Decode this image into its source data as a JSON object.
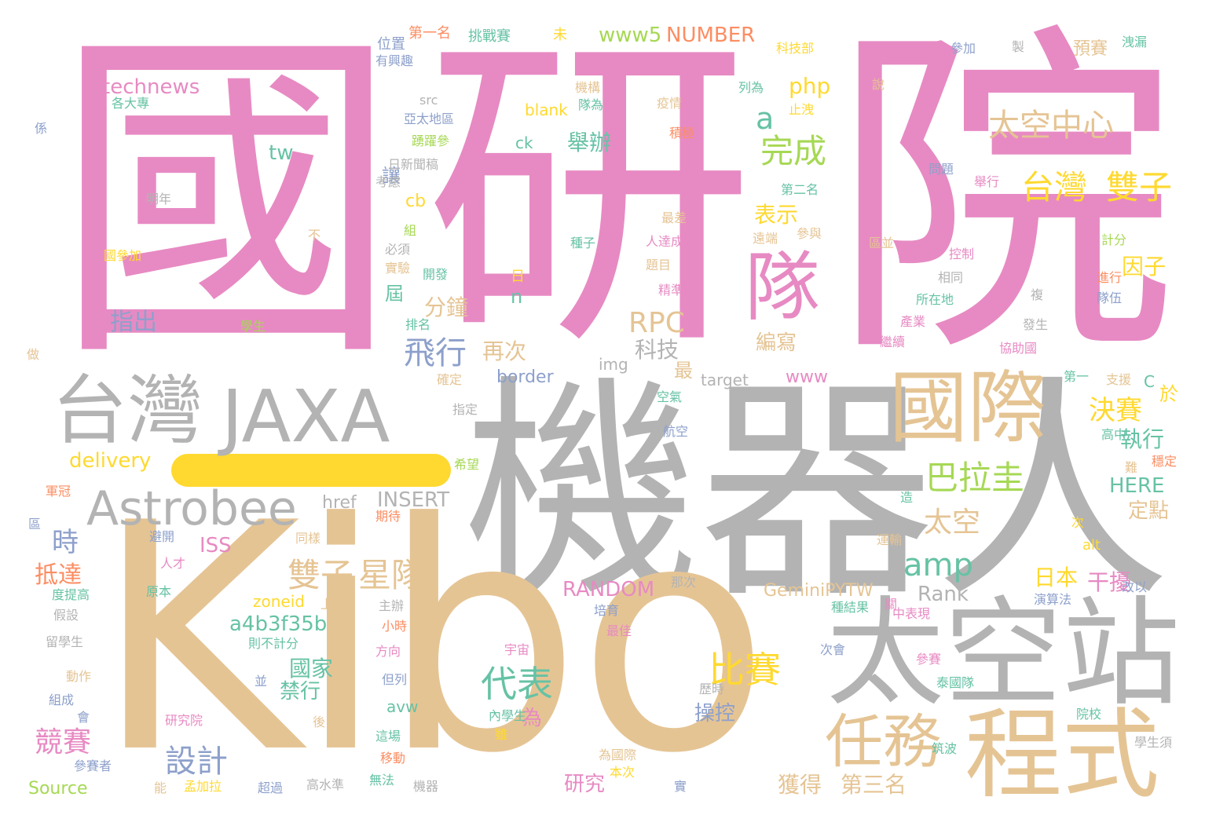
{
  "colors": {
    "pink": "#e78ac3",
    "gray": "#b3b3b3",
    "tan": "#e5c494",
    "yellow": "#ffd92f",
    "green": "#a6d854",
    "teal": "#66c2a5",
    "orange": "#fc8d62",
    "blue": "#8da0cb",
    "background": "#ffffff"
  },
  "words": [
    {
      "text": "國",
      "color": "pink"
    },
    {
      "text": "研",
      "color": "pink"
    },
    {
      "text": "院",
      "color": "pink"
    },
    {
      "text": "機器人",
      "color": "gray"
    },
    {
      "text": "Kibo",
      "color": "tan"
    },
    {
      "text": "台灣",
      "color": "gray"
    },
    {
      "text": "JAXA",
      "color": "gray"
    },
    {
      "text": "國際",
      "color": "tan"
    },
    {
      "text": "太空站",
      "color": "gray"
    },
    {
      "text": "程式",
      "color": "tan"
    },
    {
      "text": "任務",
      "color": "tan"
    },
    {
      "text": "Astrobee",
      "color": "gray"
    },
    {
      "text": "隊",
      "color": "pink"
    },
    {
      "text": "台灣",
      "color": "yellow"
    },
    {
      "text": "雙子",
      "color": "yellow"
    },
    {
      "text": "太空中心",
      "color": "tan"
    },
    {
      "text": "完成",
      "color": "green"
    },
    {
      "text": "巴拉圭",
      "color": "green"
    },
    {
      "text": "決賽",
      "color": "yellow"
    },
    {
      "text": "雙子",
      "color": "tan"
    },
    {
      "text": "星隊",
      "color": "tan"
    },
    {
      "text": "比賽",
      "color": "yellow"
    },
    {
      "text": "代表",
      "color": "teal"
    },
    {
      "text": "太空",
      "color": "tan"
    },
    {
      "text": "amp",
      "color": "teal"
    },
    {
      "text": "RPC",
      "color": "tan"
    },
    {
      "text": "飛行",
      "color": "blue"
    },
    {
      "text": "設計",
      "color": "blue"
    },
    {
      "text": "競賽",
      "color": "pink"
    },
    {
      "text": "technews",
      "color": "pink"
    },
    {
      "text": "NUMBER",
      "color": "orange"
    },
    {
      "text": "www5",
      "color": "green"
    },
    {
      "text": "php",
      "color": "yellow"
    },
    {
      "text": "a",
      "color": "teal"
    },
    {
      "text": "舉辦",
      "color": "teal"
    },
    {
      "text": "表示",
      "color": "yellow"
    },
    {
      "text": "因子",
      "color": "yellow"
    },
    {
      "text": "時",
      "color": "blue"
    },
    {
      "text": "抵達",
      "color": "orange"
    },
    {
      "text": "指出",
      "color": "blue"
    },
    {
      "text": "再次",
      "color": "tan"
    },
    {
      "text": "科技",
      "color": "gray"
    },
    {
      "text": "分鐘",
      "color": "tan"
    },
    {
      "text": "日本",
      "color": "yellow"
    },
    {
      "text": "干擾",
      "color": "pink"
    },
    {
      "text": "執行",
      "color": "teal"
    },
    {
      "text": "獲得",
      "color": "tan"
    },
    {
      "text": "第三名",
      "color": "tan"
    },
    {
      "text": "研究",
      "color": "pink"
    },
    {
      "text": "國家",
      "color": "teal"
    },
    {
      "text": "禁行",
      "color": "teal"
    },
    {
      "text": "操控",
      "color": "blue"
    },
    {
      "text": "編寫",
      "color": "tan"
    },
    {
      "text": "delivery",
      "color": "yellow"
    },
    {
      "text": "ISS",
      "color": "pink"
    },
    {
      "text": "INSERT",
      "color": "gray"
    },
    {
      "text": "href",
      "color": "gray"
    },
    {
      "text": "RANDOM",
      "color": "pink"
    },
    {
      "text": "Rank",
      "color": "gray"
    },
    {
      "text": "a4b3f35b",
      "color": "teal"
    },
    {
      "text": "zoneid",
      "color": "yellow"
    },
    {
      "text": "GeminiPYTW",
      "color": "tan"
    },
    {
      "text": "HERE",
      "color": "teal"
    },
    {
      "text": "定點",
      "color": "tan"
    },
    {
      "text": "Source",
      "color": "green"
    },
    {
      "text": "border",
      "color": "blue"
    },
    {
      "text": "www",
      "color": "pink"
    },
    {
      "text": "img",
      "color": "gray"
    },
    {
      "text": "target",
      "color": "gray"
    },
    {
      "text": "blank",
      "color": "yellow"
    },
    {
      "text": "ck",
      "color": "teal"
    },
    {
      "text": "tw",
      "color": "teal"
    },
    {
      "text": "cb",
      "color": "yellow"
    },
    {
      "text": "src",
      "color": "gray"
    },
    {
      "text": "alt",
      "color": "yellow"
    },
    {
      "text": "avw",
      "color": "teal"
    },
    {
      "text": "n",
      "color": "teal"
    },
    {
      "text": "C",
      "color": "teal"
    },
    {
      "text": "讓",
      "color": "blue"
    },
    {
      "text": "屆",
      "color": "teal"
    },
    {
      "text": "最",
      "color": "tan"
    },
    {
      "text": "於",
      "color": "yellow"
    },
    {
      "text": "為",
      "color": "pink"
    },
    {
      "text": "日",
      "color": "yellow"
    },
    {
      "text": "預賽",
      "color": "tan"
    },
    {
      "text": "第一名",
      "color": "orange"
    },
    {
      "text": "挑戰賽",
      "color": "teal"
    },
    {
      "text": "未",
      "color": "yellow"
    },
    {
      "text": "位置",
      "color": "blue"
    },
    {
      "text": "有興趣",
      "color": "blue"
    },
    {
      "text": "各大專",
      "color": "teal"
    },
    {
      "text": "亞太地區",
      "color": "blue"
    },
    {
      "text": "踴躍參",
      "color": "green"
    },
    {
      "text": "日新聞稿",
      "color": "gray"
    },
    {
      "text": "考慮",
      "color": "gray"
    },
    {
      "text": "明年",
      "color": "gray"
    },
    {
      "text": "國參加",
      "color": "yellow"
    },
    {
      "text": "係",
      "color": "blue"
    },
    {
      "text": "不",
      "color": "tan"
    },
    {
      "text": "組",
      "color": "green"
    },
    {
      "text": "必須",
      "color": "gray"
    },
    {
      "text": "實驗",
      "color": "tan"
    },
    {
      "text": "開發",
      "color": "teal"
    },
    {
      "text": "學生",
      "color": "green"
    },
    {
      "text": "排名",
      "color": "teal"
    },
    {
      "text": "確定",
      "color": "tan"
    },
    {
      "text": "做",
      "color": "tan"
    },
    {
      "text": "指定",
      "color": "gray"
    },
    {
      "text": "希望",
      "color": "green"
    },
    {
      "text": "機構",
      "color": "tan"
    },
    {
      "text": "隊為",
      "color": "teal"
    },
    {
      "text": "列為",
      "color": "teal"
    },
    {
      "text": "止洩",
      "color": "yellow"
    },
    {
      "text": "疫情",
      "color": "tan"
    },
    {
      "text": "積極",
      "color": "orange"
    },
    {
      "text": "第二名",
      "color": "teal"
    },
    {
      "text": "參與",
      "color": "tan"
    },
    {
      "text": "遠端",
      "color": "tan"
    },
    {
      "text": "人達成",
      "color": "pink"
    },
    {
      "text": "最差",
      "color": "tan"
    },
    {
      "text": "種子",
      "color": "teal"
    },
    {
      "text": "題目",
      "color": "tan"
    },
    {
      "text": "精準",
      "color": "pink"
    },
    {
      "text": "科技部",
      "color": "yellow"
    },
    {
      "text": "參加",
      "color": "blue"
    },
    {
      "text": "製",
      "color": "gray"
    },
    {
      "text": "洩漏",
      "color": "teal"
    },
    {
      "text": "說",
      "color": "tan"
    },
    {
      "text": "問題",
      "color": "blue"
    },
    {
      "text": "舉行",
      "color": "pink"
    },
    {
      "text": "計分",
      "color": "green"
    },
    {
      "text": "區並",
      "color": "tan"
    },
    {
      "text": "控制",
      "color": "pink"
    },
    {
      "text": "相同",
      "color": "gray"
    },
    {
      "text": "進行",
      "color": "orange"
    },
    {
      "text": "所在地",
      "color": "teal"
    },
    {
      "text": "複",
      "color": "gray"
    },
    {
      "text": "產業",
      "color": "pink"
    },
    {
      "text": "發生",
      "color": "gray"
    },
    {
      "text": "隊伍",
      "color": "blue"
    },
    {
      "text": "繼續",
      "color": "pink"
    },
    {
      "text": "協助國",
      "color": "pink"
    },
    {
      "text": "第一",
      "color": "teal"
    },
    {
      "text": "支援",
      "color": "tan"
    },
    {
      "text": "高中",
      "color": "teal"
    },
    {
      "text": "穩定",
      "color": "orange"
    },
    {
      "text": "難",
      "color": "tan"
    },
    {
      "text": "空氣",
      "color": "teal"
    },
    {
      "text": "航空",
      "color": "blue"
    },
    {
      "text": "軍冠",
      "color": "orange"
    },
    {
      "text": "避開",
      "color": "blue"
    },
    {
      "text": "人才",
      "color": "pink"
    },
    {
      "text": "同樣",
      "color": "tan"
    },
    {
      "text": "期待",
      "color": "orange"
    },
    {
      "text": "度提高",
      "color": "teal"
    },
    {
      "text": "原本",
      "color": "teal"
    },
    {
      "text": "假設",
      "color": "gray"
    },
    {
      "text": "那次",
      "color": "gray"
    },
    {
      "text": "上",
      "color": "tan"
    },
    {
      "text": "主辦",
      "color": "gray"
    },
    {
      "text": "小時",
      "color": "orange"
    },
    {
      "text": "留學生",
      "color": "gray"
    },
    {
      "text": "則不計分",
      "color": "teal"
    },
    {
      "text": "方向",
      "color": "pink"
    },
    {
      "text": "動作",
      "color": "tan"
    },
    {
      "text": "並",
      "color": "blue"
    },
    {
      "text": "但列",
      "color": "blue"
    },
    {
      "text": "組成",
      "color": "blue"
    },
    {
      "text": "會",
      "color": "blue"
    },
    {
      "text": "研究院",
      "color": "pink"
    },
    {
      "text": "後",
      "color": "tan"
    },
    {
      "text": "內學生",
      "color": "teal"
    },
    {
      "text": "雖",
      "color": "yellow"
    },
    {
      "text": "這場",
      "color": "teal"
    },
    {
      "text": "移動",
      "color": "orange"
    },
    {
      "text": "參賽者",
      "color": "blue"
    },
    {
      "text": "能",
      "color": "tan"
    },
    {
      "text": "孟加拉",
      "color": "yellow"
    },
    {
      "text": "超過",
      "color": "blue"
    },
    {
      "text": "高水準",
      "color": "gray"
    },
    {
      "text": "無法",
      "color": "teal"
    },
    {
      "text": "機器",
      "color": "gray"
    },
    {
      "text": "本次",
      "color": "yellow"
    },
    {
      "text": "為國際",
      "color": "tan"
    },
    {
      "text": "實",
      "color": "blue"
    },
    {
      "text": "宇宙",
      "color": "pink"
    },
    {
      "text": "培育",
      "color": "blue"
    },
    {
      "text": "最佳",
      "color": "pink"
    },
    {
      "text": "歷時",
      "color": "gray"
    },
    {
      "text": "次會",
      "color": "blue"
    },
    {
      "text": "參賽",
      "color": "pink"
    },
    {
      "text": "泰國隊",
      "color": "teal"
    },
    {
      "text": "院校",
      "color": "teal"
    },
    {
      "text": "筑波",
      "color": "teal"
    },
    {
      "text": "學生須",
      "color": "gray"
    },
    {
      "text": "中表現",
      "color": "pink"
    },
    {
      "text": "演算法",
      "color": "blue"
    },
    {
      "text": "改以",
      "color": "blue"
    },
    {
      "text": "運輸",
      "color": "tan"
    },
    {
      "text": "次",
      "color": "yellow"
    },
    {
      "text": "造",
      "color": "teal"
    },
    {
      "text": "關",
      "color": "pink"
    },
    {
      "text": "種結果",
      "color": "teal"
    },
    {
      "text": "區",
      "color": "blue"
    }
  ]
}
